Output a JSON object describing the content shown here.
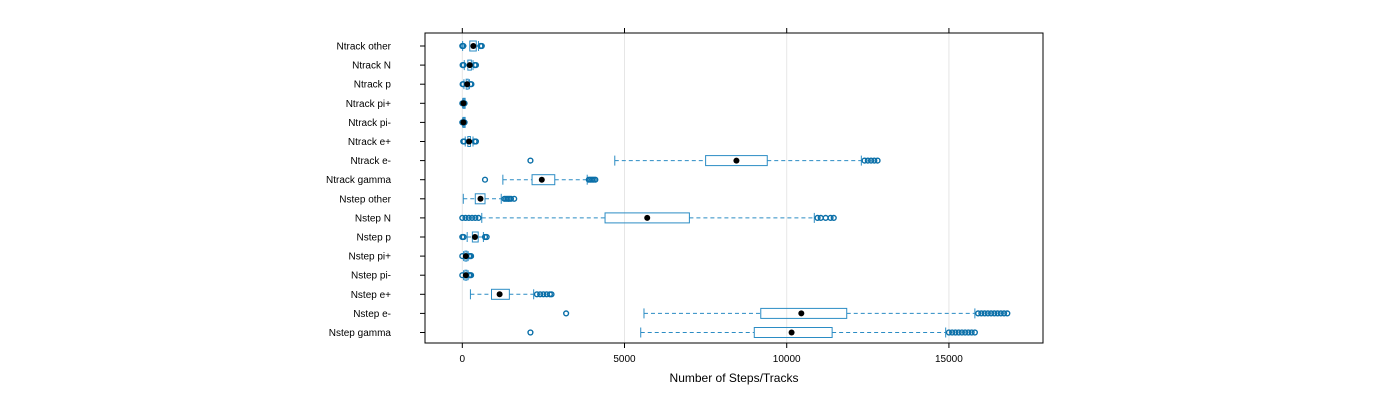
{
  "chart_data": {
    "type": "boxplot",
    "xlabel": "Number of Steps/Tracks",
    "xlim": [
      -1150,
      17900
    ],
    "xticks": [
      0,
      5000,
      10000,
      15000
    ],
    "xtick_labels": [
      "0",
      "5000",
      "10000",
      "15000"
    ],
    "grid": true,
    "box_color": "#2b8cc4",
    "outlier_color": "#0a6fa8",
    "median_color": "#000000",
    "grid_color": "#e6e6e6",
    "categories": [
      "Ntrack other",
      "Ntrack N",
      "Ntrack p",
      "Ntrack pi+",
      "Ntrack pi-",
      "Ntrack e+",
      "Ntrack e-",
      "Ntrack gamma",
      "Nstep other",
      "Nstep N",
      "Nstep p",
      "Nstep pi+",
      "Nstep pi-",
      "Nstep e+",
      "Nstep e-",
      "Nstep gamma"
    ],
    "boxes": [
      {
        "label": "Ntrack other",
        "whisker_low": 10,
        "q1": 230,
        "median": 340,
        "q3": 430,
        "whisker_high": 500,
        "outliers": [
          0,
          30,
          560,
          600
        ]
      },
      {
        "label": "Ntrack N",
        "whisker_low": 60,
        "q1": 170,
        "median": 230,
        "q3": 280,
        "whisker_high": 330,
        "outliers": [
          10,
          40,
          380,
          420
        ]
      },
      {
        "label": "Ntrack p",
        "whisker_low": 50,
        "q1": 120,
        "median": 150,
        "q3": 180,
        "whisker_high": 220,
        "outliers": [
          10,
          30,
          250,
          280
        ]
      },
      {
        "label": "Ntrack pi+",
        "whisker_low": 10,
        "q1": 25,
        "median": 35,
        "q3": 45,
        "whisker_high": 55,
        "outliers": [
          0,
          70
        ]
      },
      {
        "label": "Ntrack pi-",
        "whisker_low": 10,
        "q1": 25,
        "median": 35,
        "q3": 45,
        "whisker_high": 55,
        "outliers": [
          0,
          70
        ]
      },
      {
        "label": "Ntrack e+",
        "whisker_low": 90,
        "q1": 170,
        "median": 210,
        "q3": 250,
        "whisker_high": 330,
        "outliers": [
          30,
          60,
          380,
          420
        ]
      },
      {
        "label": "Ntrack e-",
        "whisker_low": 4700,
        "q1": 7500,
        "median": 8450,
        "q3": 9400,
        "whisker_high": 12300,
        "outliers": [
          2100,
          12400,
          12500,
          12600,
          12700,
          12800
        ]
      },
      {
        "label": "Ntrack gamma",
        "whisker_low": 1250,
        "q1": 2150,
        "median": 2450,
        "q3": 2850,
        "whisker_high": 3850,
        "outliers": [
          700,
          3900,
          3950,
          4000,
          4050,
          4100
        ]
      },
      {
        "label": "Nstep other",
        "whisker_low": 30,
        "q1": 400,
        "median": 560,
        "q3": 700,
        "whisker_high": 1200,
        "outliers": [
          1300,
          1350,
          1400,
          1450,
          1500,
          1600
        ]
      },
      {
        "label": "Nstep N",
        "whisker_low": 600,
        "q1": 4400,
        "median": 5700,
        "q3": 7000,
        "whisker_high": 10850,
        "outliers": [
          0,
          100,
          200,
          300,
          400,
          500,
          10950,
          11050,
          11200,
          11350,
          11450
        ]
      },
      {
        "label": "Nstep p",
        "whisker_low": 150,
        "q1": 310,
        "median": 390,
        "q3": 490,
        "whisker_high": 650,
        "outliers": [
          0,
          40,
          700,
          750
        ]
      },
      {
        "label": "Nstep pi+",
        "whisker_low": 40,
        "q1": 80,
        "median": 110,
        "q3": 140,
        "whisker_high": 180,
        "outliers": [
          0,
          210,
          240,
          270
        ]
      },
      {
        "label": "Nstep pi-",
        "whisker_low": 40,
        "q1": 80,
        "median": 110,
        "q3": 140,
        "whisker_high": 180,
        "outliers": [
          0,
          210,
          240,
          270
        ]
      },
      {
        "label": "Nstep e+",
        "whisker_low": 250,
        "q1": 900,
        "median": 1150,
        "q3": 1450,
        "whisker_high": 2200,
        "outliers": [
          2300,
          2400,
          2500,
          2600,
          2700,
          2750
        ]
      },
      {
        "label": "Nstep e-",
        "whisker_low": 5600,
        "q1": 9200,
        "median": 10450,
        "q3": 11850,
        "whisker_high": 15800,
        "outliers": [
          3200,
          15900,
          16000,
          16100,
          16200,
          16300,
          16400,
          16500,
          16600,
          16700,
          16800
        ]
      },
      {
        "label": "Nstep gamma",
        "whisker_low": 5500,
        "q1": 9000,
        "median": 10150,
        "q3": 11400,
        "whisker_high": 14900,
        "outliers": [
          2100,
          15000,
          15100,
          15200,
          15300,
          15400,
          15500,
          15600,
          15700,
          15800
        ]
      }
    ]
  }
}
